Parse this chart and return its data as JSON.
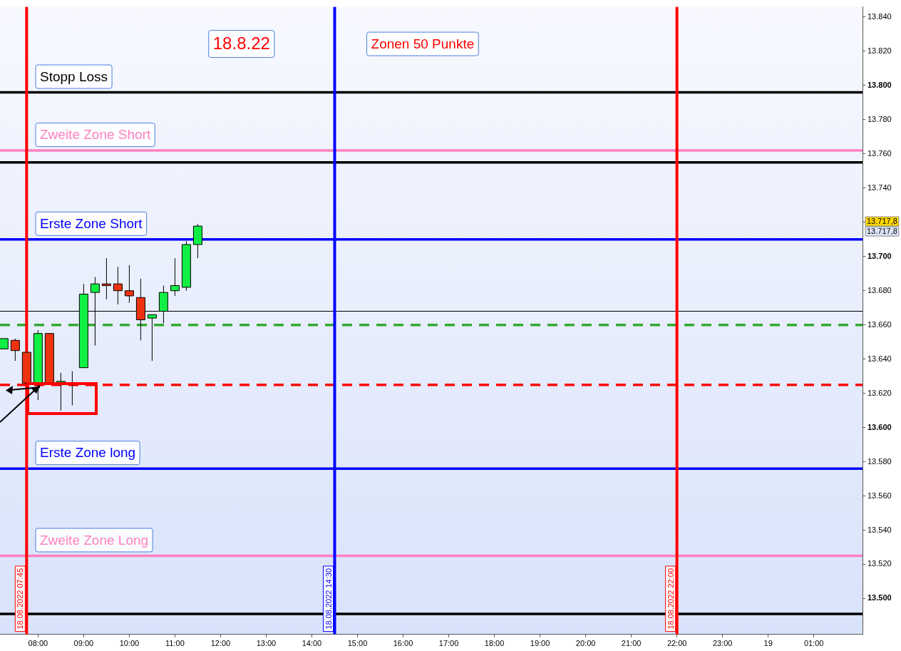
{
  "chart_data": {
    "type": "candlestick",
    "x": [
      "2022-08-18T07:15",
      "2022-08-18T07:30",
      "2022-08-18T07:45",
      "2022-08-18T08:00",
      "2022-08-18T08:15",
      "2022-08-18T08:30",
      "2022-08-18T08:45",
      "2022-08-18T09:00",
      "2022-08-18T09:15",
      "2022-08-18T09:30",
      "2022-08-18T09:45",
      "2022-08-18T10:00",
      "2022-08-18T10:15",
      "2022-08-18T10:30",
      "2022-08-18T10:45",
      "2022-08-18T11:00",
      "2022-08-18T11:15",
      "2022-08-18T11:30"
    ],
    "ohlc": [
      [
        13646,
        13652,
        13646,
        13652
      ],
      [
        13651,
        13652,
        13639,
        13645
      ],
      [
        13644,
        13644,
        13626,
        13626
      ],
      [
        13626,
        13657,
        13616,
        13655
      ],
      [
        13655,
        13655,
        13626,
        13626
      ],
      [
        13625,
        13632,
        13610,
        13627
      ],
      [
        13625,
        13633,
        13613,
        13626
      ],
      [
        13635,
        13684,
        13635,
        13678
      ],
      [
        13679,
        13688,
        13648,
        13684
      ],
      [
        13684,
        13699,
        13675,
        13683
      ],
      [
        13684,
        13694,
        13672,
        13680
      ],
      [
        13680,
        13695,
        13673,
        13677
      ],
      [
        13676,
        13687,
        13651,
        13663
      ],
      [
        13664,
        13666,
        13639,
        13666
      ],
      [
        13668,
        13683,
        13661,
        13679
      ],
      [
        13680,
        13699,
        13677,
        13683
      ],
      [
        13682,
        13709,
        13680,
        13707
      ],
      [
        13707,
        13719,
        13699,
        13717.8
      ]
    ],
    "colors": [
      "#11ee44",
      "#ee3311",
      "#ee3311",
      "#11ee44",
      "#ee3311",
      "#11ee44",
      "#11ee44",
      "#11ee44",
      "#11ee44",
      "#ee3311",
      "#ee3311",
      "#ee3311",
      "#ee3311",
      "#11ee44",
      "#11ee44",
      "#11ee44",
      "#11ee44",
      "#11ee44"
    ],
    "xlim": [
      "2022-08-18T07:10",
      "2022-08-19T02:04"
    ],
    "xticks": [
      {
        "value": "2022-08-18T08:00",
        "label": "08:00"
      },
      {
        "value": "2022-08-18T09:00",
        "label": "09:00"
      },
      {
        "value": "2022-08-18T10:00",
        "label": "10:00"
      },
      {
        "value": "2022-08-18T11:00",
        "label": "11:00"
      },
      {
        "value": "2022-08-18T12:00",
        "label": "12:00"
      },
      {
        "value": "2022-08-18T13:00",
        "label": "13:00"
      },
      {
        "value": "2022-08-18T14:00",
        "label": "14:00"
      },
      {
        "value": "2022-08-18T15:00",
        "label": "15:00"
      },
      {
        "value": "2022-08-18T16:00",
        "label": "16:00"
      },
      {
        "value": "2022-08-18T17:00",
        "label": "17:00"
      },
      {
        "value": "2022-08-18T18:00",
        "label": "18:00"
      },
      {
        "value": "2022-08-18T19:00",
        "label": "19:00"
      },
      {
        "value": "2022-08-18T20:00",
        "label": "20:00"
      },
      {
        "value": "2022-08-18T21:00",
        "label": "21:00"
      },
      {
        "value": "2022-08-18T22:00",
        "label": "22:00"
      },
      {
        "value": "2022-08-18T23:00",
        "label": "23:00"
      },
      {
        "value": "2022-08-19T00:00",
        "label": "19"
      },
      {
        "value": "2022-08-19T01:00",
        "label": "01:00"
      }
    ],
    "ylim": [
      13479,
      13846
    ],
    "yticks": [
      {
        "value": 13500,
        "label": "13.500"
      },
      {
        "value": 13520,
        "label": "13.520"
      },
      {
        "value": 13540,
        "label": "13.540"
      },
      {
        "value": 13560,
        "label": "13.560"
      },
      {
        "value": 13580,
        "label": "13.580"
      },
      {
        "value": 13600,
        "label": "13.600"
      },
      {
        "value": 13620,
        "label": "13.620"
      },
      {
        "value": 13640,
        "label": "13.640"
      },
      {
        "value": 13660,
        "label": "13.660"
      },
      {
        "value": 13680,
        "label": "13.680"
      },
      {
        "value": 13700,
        "label": "13.700"
      },
      {
        "value": 13720,
        "label": null
      },
      {
        "value": 13740,
        "label": "13.740"
      },
      {
        "value": 13760,
        "label": "13.760"
      },
      {
        "value": 13780,
        "label": "13.780"
      },
      {
        "value": 13800,
        "label": "13.800"
      },
      {
        "value": 13820,
        "label": "13.820"
      },
      {
        "value": 13840,
        "label": "13.840"
      }
    ],
    "grid": false,
    "ref_lines": [
      {
        "axis": "y",
        "value": 13796,
        "label": "Stopp Loss",
        "color": "#000000",
        "line_style": "solid"
      },
      {
        "axis": "y",
        "value": 13762,
        "label": "Zweite Zone Short",
        "color": "#ff80c0",
        "line_style": "solid"
      },
      {
        "axis": "y",
        "value": 13755,
        "color": "#000000",
        "line_style": "solid"
      },
      {
        "axis": "y",
        "value": 13710,
        "label": "Erste Zone Short",
        "color": "#0000ff",
        "line_style": "solid"
      },
      {
        "axis": "y",
        "value": 13668,
        "color": "#000000",
        "line_style": "solid"
      },
      {
        "axis": "y",
        "value": 13660,
        "color": "#33aa33",
        "line_style": "dashed"
      },
      {
        "axis": "y",
        "value": 13625,
        "color": "#ff0000",
        "line_style": "dashed"
      },
      {
        "axis": "y",
        "value": 13576,
        "label": "Erste Zone long",
        "color": "#0000ff",
        "line_style": "solid"
      },
      {
        "axis": "y",
        "value": 13525,
        "label": "Zweite Zone Long",
        "color": "#ff80c0",
        "line_style": "solid"
      },
      {
        "axis": "y",
        "value": 13491,
        "color": "#000000",
        "line_style": "solid"
      },
      {
        "axis": "x",
        "value": "2022-08-18T07:45",
        "label": "18.08.2022 07:45",
        "color": "#ff0000",
        "line_style": "solid"
      },
      {
        "axis": "x",
        "value": "2022-08-18T14:30",
        "label": "18.08.2022 14:30",
        "color": "#0000ff",
        "line_style": "solid"
      },
      {
        "axis": "x",
        "value": "2022-08-18T22:00",
        "label": "18.08.2022 22:00",
        "color": "#ff0000",
        "line_style": "solid"
      }
    ],
    "annotations": [
      "18.8.22",
      "Zonen 50 Punkte",
      "13.717,8",
      "13.717,8"
    ]
  }
}
